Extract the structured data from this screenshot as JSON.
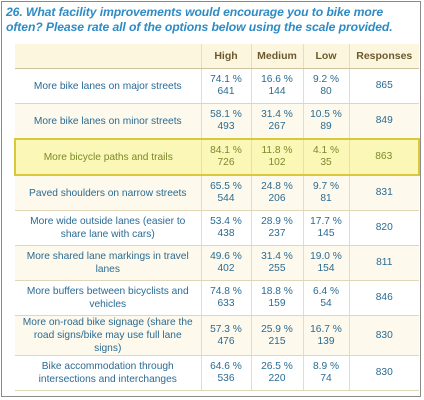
{
  "question": "26. What facility improvements would encourage you to bike more often? Please rate all of the options below using the scale provided.",
  "columns": [
    "",
    "High",
    "Medium",
    "Low",
    "Responses"
  ],
  "rows": [
    {
      "label": "More bike lanes on major streets",
      "high_pct": "74.1 %",
      "high_n": "641",
      "med_pct": "16.6 %",
      "med_n": "144",
      "low_pct": "9.2 %",
      "low_n": "80",
      "responses": "865"
    },
    {
      "label": "More bike lanes on minor streets",
      "high_pct": "58.1 %",
      "high_n": "493",
      "med_pct": "31.4 %",
      "med_n": "267",
      "low_pct": "10.5 %",
      "low_n": "89",
      "responses": "849"
    },
    {
      "label": "More bicycle paths and trails",
      "high_pct": "84.1 %",
      "high_n": "726",
      "med_pct": "11.8 %",
      "med_n": "102",
      "low_pct": "4.1 %",
      "low_n": "35",
      "responses": "863"
    },
    {
      "label": "Paved shoulders on narrow streets",
      "high_pct": "65.5 %",
      "high_n": "544",
      "med_pct": "24.8 %",
      "med_n": "206",
      "low_pct": "9.7 %",
      "low_n": "81",
      "responses": "831"
    },
    {
      "label": "More wide outside lanes (easier to share lane with cars)",
      "high_pct": "53.4 %",
      "high_n": "438",
      "med_pct": "28.9 %",
      "med_n": "237",
      "low_pct": "17.7 %",
      "low_n": "145",
      "responses": "820"
    },
    {
      "label": "More shared lane markings in travel lanes",
      "high_pct": "49.6 %",
      "high_n": "402",
      "med_pct": "31.4 %",
      "med_n": "255",
      "low_pct": "19.0 %",
      "low_n": "154",
      "responses": "811"
    },
    {
      "label": "More buffers between bicyclists and vehicles",
      "high_pct": "74.8 %",
      "high_n": "633",
      "med_pct": "18.8 %",
      "med_n": "159",
      "low_pct": "6.4 %",
      "low_n": "54",
      "responses": "846"
    },
    {
      "label": "More on-road bike signage (share the road signs/bike may use full lane signs)",
      "high_pct": "57.3 %",
      "high_n": "476",
      "med_pct": "25.9 %",
      "med_n": "215",
      "low_pct": "16.7 %",
      "low_n": "139",
      "responses": "830"
    },
    {
      "label": "Bike accommodation through intersections and interchanges",
      "high_pct": "64.6 %",
      "high_n": "536",
      "med_pct": "26.5 %",
      "med_n": "220",
      "low_pct": "8.9 %",
      "low_n": "74",
      "responses": "830"
    }
  ],
  "highlighted_row": 2,
  "colors": {
    "question": "#2e8bc4",
    "cell_text": "#2a6b93",
    "highlight_bg": "#fbf7b6",
    "highlight_border": "#d9c93a",
    "header_bg": "#fdf6de"
  }
}
